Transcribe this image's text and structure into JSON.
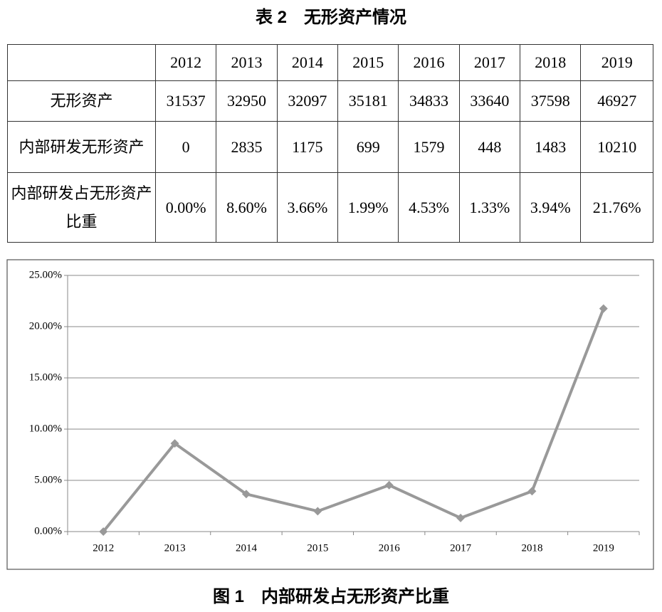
{
  "table": {
    "title": "表 2　无形资产情况",
    "columns": [
      "2012",
      "2013",
      "2014",
      "2015",
      "2016",
      "2017",
      "2018",
      "2019"
    ],
    "rows": [
      {
        "label": "无形资产",
        "cells": [
          "31537",
          "32950",
          "32097",
          "35181",
          "34833",
          "33640",
          "37598",
          "46927"
        ]
      },
      {
        "label": "内部研发无形资产",
        "cells": [
          "0",
          "2835",
          "1175",
          "699",
          "1579",
          "448",
          "1483",
          "10210"
        ]
      },
      {
        "label": "内部研发占无形资产比重",
        "cells": [
          "0.00%",
          "8.60%",
          "3.66%",
          "1.99%",
          "4.53%",
          "1.33%",
          "3.94%",
          "21.76%"
        ]
      }
    ]
  },
  "chart_data": {
    "type": "line",
    "caption": "图 1　内部研发占无形资产比重",
    "categories": [
      "2012",
      "2013",
      "2014",
      "2015",
      "2016",
      "2017",
      "2018",
      "2019"
    ],
    "values": [
      0,
      8.6,
      3.66,
      1.99,
      4.53,
      1.33,
      3.94,
      21.76
    ],
    "color": "#999999",
    "ylim": [
      0,
      25
    ],
    "yticks": [
      {
        "value": 0,
        "label": "0.00%"
      },
      {
        "value": 5,
        "label": "5.00%"
      },
      {
        "value": 10,
        "label": "10.00%"
      },
      {
        "value": 15,
        "label": "15.00%"
      },
      {
        "value": 20,
        "label": "20.00%"
      },
      {
        "value": 25,
        "label": "25.00%"
      }
    ],
    "grid": true
  }
}
